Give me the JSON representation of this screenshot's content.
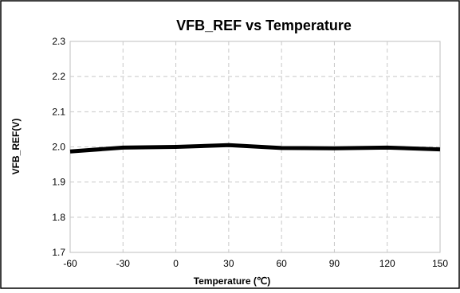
{
  "chart_data": {
    "type": "line",
    "title": "VFB_REF vs Temperature",
    "xlabel": "Temperature (℃)",
    "ylabel": "VFB_REF(V)",
    "xlim": [
      -60,
      150
    ],
    "ylim": [
      1.7,
      2.3
    ],
    "x_ticks": [
      "-60",
      "-30",
      "0",
      "30",
      "60",
      "90",
      "120",
      "150"
    ],
    "y_ticks": [
      "1.7",
      "1.8",
      "1.9",
      "2.0",
      "2.1",
      "2.2",
      "2.3"
    ],
    "grid": true,
    "series": [
      {
        "x": [
          -60,
          -30,
          0,
          30,
          60,
          90,
          120,
          150
        ],
        "y": [
          1.987,
          1.998,
          2.0,
          2.005,
          1.997,
          1.996,
          1.998,
          1.993
        ],
        "color": "#000000"
      }
    ]
  }
}
